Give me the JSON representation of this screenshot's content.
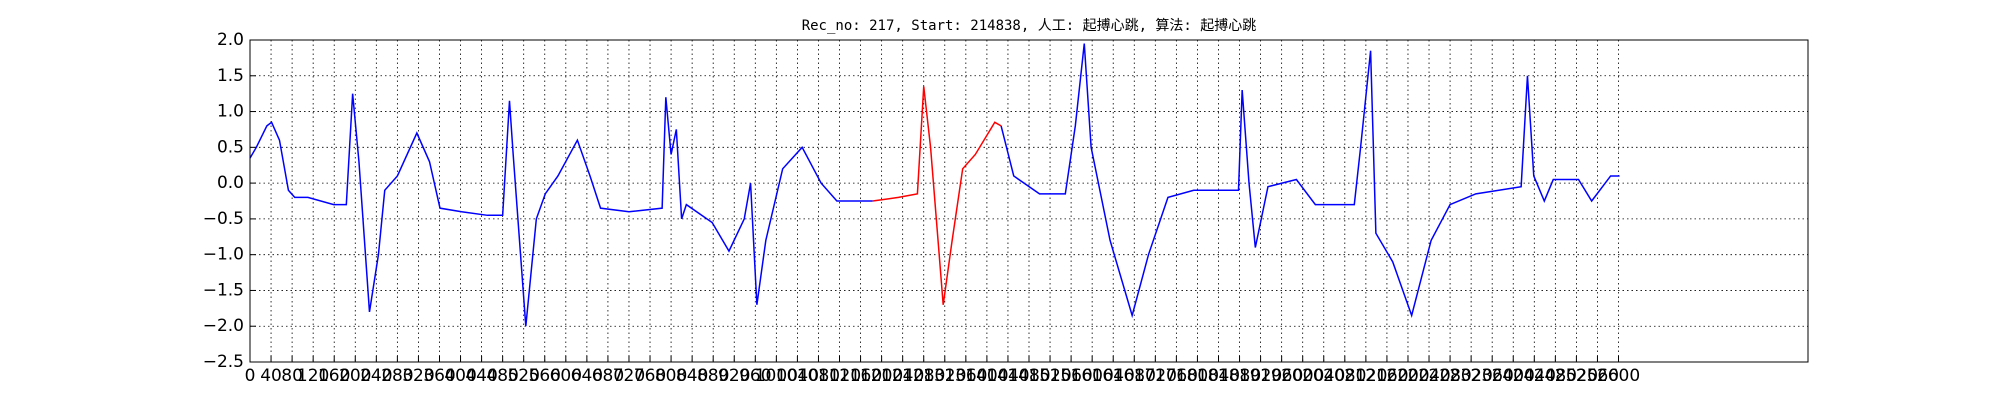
{
  "chart_data": {
    "type": "line",
    "title": "Rec_no: 217, Start: 214838, 人工: 起搏心跳, 算法: 起搏心跳",
    "x": [
      0,
      12,
      32,
      41,
      56,
      73,
      85,
      110,
      159,
      183,
      195,
      207,
      227,
      244,
      256,
      280,
      317,
      341,
      361,
      402,
      451,
      480,
      493,
      500,
      524,
      544,
      561,
      585,
      622,
      646,
      666,
      720,
      783,
      790,
      800,
      810,
      820,
      829,
      878,
      910,
      939,
      951,
      963,
      980,
      1012,
      1049,
      1085,
      1115,
      1183,
      1232,
      1268,
      1280,
      1293,
      1317,
      1334,
      1354,
      1378,
      1415,
      1427,
      1451,
      1500,
      1549,
      1568,
      1585,
      1598,
      1634,
      1676,
      1707,
      1744,
      1793,
      1878,
      1885,
      1898,
      1910,
      1934,
      1988,
      2024,
      2098,
      2110,
      2129,
      2139,
      2171,
      2207,
      2244,
      2280,
      2329,
      2415,
      2427,
      2439,
      2459,
      2476,
      2524,
      2549,
      2585,
      2602
    ],
    "series": [
      {
        "name": "blue",
        "color": "#0000ff",
        "values": [
          0.35,
          0.5,
          0.8,
          0.85,
          0.6,
          -0.1,
          -0.2,
          -0.2,
          -0.3,
          -0.3,
          1.25,
          0.3,
          -1.8,
          -1.0,
          -0.1,
          0.1,
          0.7,
          0.3,
          -0.35,
          -0.4,
          -0.45,
          -0.45,
          1.15,
          0.4,
          -2.0,
          -0.5,
          -0.15,
          0.1,
          0.6,
          0.1,
          -0.35,
          -0.4,
          -0.35,
          1.2,
          0.4,
          0.75,
          -0.5,
          -0.3,
          -0.55,
          -0.95,
          -0.5,
          0.0,
          -1.7,
          -0.8,
          0.2,
          0.5,
          0.0,
          -0.25,
          -0.25,
          null,
          null,
          null,
          null,
          null,
          null,
          null,
          null,
          null,
          0.8,
          0.1,
          -0.15,
          -0.15,
          0.8,
          1.95,
          0.5,
          -0.8,
          -1.85,
          -1.0,
          -0.2,
          -0.1,
          -0.1,
          1.3,
          0.0,
          -0.9,
          -0.05,
          0.05,
          -0.3,
          -0.3,
          0.5,
          1.85,
          -0.7,
          -1.1,
          -1.85,
          -0.8,
          -0.3,
          -0.15,
          -0.05,
          1.5,
          0.1,
          -0.25,
          0.05,
          0.05,
          -0.25,
          0.1,
          0.1
        ]
      },
      {
        "name": "red",
        "color": "#ff0000",
        "values": [
          null,
          null,
          null,
          null,
          null,
          null,
          null,
          null,
          null,
          null,
          null,
          null,
          null,
          null,
          null,
          null,
          null,
          null,
          null,
          null,
          null,
          null,
          null,
          null,
          null,
          null,
          null,
          null,
          null,
          null,
          null,
          null,
          null,
          null,
          null,
          null,
          null,
          null,
          null,
          null,
          null,
          null,
          null,
          null,
          null,
          null,
          null,
          null,
          -0.25,
          -0.2,
          -0.15,
          1.35,
          0.5,
          -1.7,
          -0.8,
          0.2,
          0.4,
          0.85,
          0.8,
          null,
          null,
          null,
          null,
          null,
          null,
          null,
          null,
          null,
          null,
          null,
          null,
          null,
          null,
          null,
          null,
          null,
          null,
          null,
          null,
          null,
          null,
          null,
          null,
          null,
          null,
          null,
          null,
          null,
          null,
          null,
          null,
          null,
          null,
          null,
          null
        ]
      }
    ],
    "xlim": [
      0,
      2960
    ],
    "xticks": [
      0,
      40,
      80,
      120,
      160,
      200,
      240,
      280,
      320,
      360,
      400,
      440,
      480,
      520,
      560,
      600,
      640,
      680,
      720,
      760,
      800,
      840,
      880,
      920,
      960,
      1000,
      1040,
      1080,
      1120,
      1160,
      1200,
      1240,
      1280,
      1320,
      1360,
      1400,
      1440,
      1480,
      1520,
      1560,
      1600,
      1640,
      1680,
      1720,
      1760,
      1800,
      1840,
      1880,
      1920,
      1960,
      2000,
      2040,
      2080,
      2120,
      2160,
      2200,
      2240,
      2280,
      2320,
      2360,
      2400,
      2440,
      2480,
      2520,
      2560,
      2600
    ],
    "ylim": [
      -2.5,
      2.0
    ],
    "yticks": [
      {
        "value": -2.5,
        "label": "−2.5"
      },
      {
        "value": -2.0,
        "label": "−2.0"
      },
      {
        "value": -1.5,
        "label": "−1.5"
      },
      {
        "value": -1.0,
        "label": "−1.0"
      },
      {
        "value": -0.5,
        "label": "−0.5"
      },
      {
        "value": 0,
        "label": "0.0"
      },
      {
        "value": 0.5,
        "label": "0.5"
      },
      {
        "value": 1.0,
        "label": "1.0"
      },
      {
        "value": 1.5,
        "label": "1.5"
      },
      {
        "value": 2.0,
        "label": "2.0"
      }
    ],
    "grid": true
  }
}
